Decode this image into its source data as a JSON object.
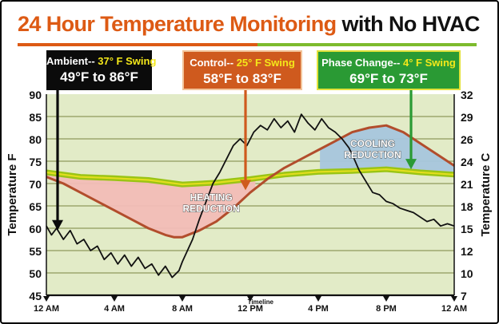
{
  "title": {
    "part1": "24 Hour Temperature Monitoring",
    "part2": "with No HVAC"
  },
  "callouts": {
    "ambient": {
      "label": "Ambient-- ",
      "swing": "37° F Swing",
      "range": "49°F to 86°F"
    },
    "control": {
      "label": "Control-- ",
      "swing": "25° F Swing",
      "range": "58°F to 83°F"
    },
    "phase": {
      "label": "Phase Change-- ",
      "swing": "4° F Swing",
      "range": "69°F to 73°F"
    }
  },
  "annotations": {
    "heating": [
      "HEATING",
      "REDUCTION"
    ],
    "cooling": [
      "COOLING",
      "REDUCTION"
    ]
  },
  "colors": {
    "plot_bg": "#e2ebc7",
    "grid": "#8f9a5c",
    "ambient": "#111111",
    "control": "#b24d2c",
    "phase_fill": "#9ac414",
    "phase_line": "#e2de1e",
    "heating_fill": "#f2bdb7",
    "cooling_fill": "#a7c6dd"
  },
  "chart_data": {
    "type": "line",
    "xlabel": "Timeline",
    "ylabel": "Temperature F",
    "y2label": "Temperature C",
    "x_tick_labels": [
      "12 AM",
      "4 AM",
      "8 AM",
      "12 PM",
      "4 PM",
      "8 PM",
      "12 AM"
    ],
    "x_ticks_hours": [
      0,
      4,
      8,
      12,
      16,
      20,
      24
    ],
    "xlim_hours": [
      0,
      24
    ],
    "ylim": [
      45,
      90
    ],
    "y_ticks": [
      45,
      50,
      55,
      60,
      65,
      70,
      75,
      80,
      85,
      90
    ],
    "y2_ticks": [
      7,
      10,
      12,
      15,
      18,
      21,
      24,
      26,
      29,
      32
    ],
    "grid": true,
    "series": [
      {
        "name": "Ambient",
        "x": [
          0,
          0.3,
          0.6,
          1,
          1.4,
          1.8,
          2.2,
          2.6,
          3,
          3.4,
          3.8,
          4.2,
          4.6,
          5,
          5.4,
          5.8,
          6.2,
          6.6,
          7,
          7.4,
          7.8,
          8,
          8.3,
          8.6,
          9,
          9.4,
          9.8,
          10.2,
          10.6,
          11,
          11.4,
          11.8,
          12.2,
          12.6,
          13,
          13.4,
          13.8,
          14.2,
          14.6,
          15,
          15.4,
          15.8,
          16.2,
          16.6,
          17,
          17.4,
          17.8,
          18,
          18.4,
          18.8,
          19.2,
          19.6,
          20,
          20.4,
          20.8,
          21.2,
          21.6,
          22,
          22.4,
          22.8,
          23.2,
          23.6,
          24
        ],
        "y": [
          60.5,
          58.5,
          60,
          57.5,
          59.5,
          56.5,
          57.5,
          55,
          56,
          53,
          54.5,
          52,
          54,
          51.5,
          53.5,
          51,
          52,
          49.5,
          51.5,
          49,
          50.5,
          52.5,
          55,
          57.5,
          62,
          66,
          70,
          72.5,
          75.5,
          78.5,
          80,
          78.5,
          81.5,
          83,
          82,
          84.5,
          82.5,
          84,
          81.5,
          85.5,
          83.5,
          82,
          84.5,
          82.5,
          81.5,
          80,
          78,
          76.5,
          73,
          70.5,
          68,
          67.5,
          66,
          65.5,
          64.5,
          64,
          63.5,
          62.5,
          61.5,
          62,
          60.5,
          61,
          60.5
        ]
      },
      {
        "name": "Control",
        "x": [
          0,
          1,
          2,
          3,
          4,
          5,
          6,
          7,
          7.5,
          8,
          9,
          10,
          11,
          12,
          13,
          14,
          15,
          16,
          17,
          18,
          19,
          20,
          21,
          22,
          23,
          24
        ],
        "y": [
          71.5,
          70,
          68,
          66,
          64,
          62,
          60,
          58.5,
          58,
          58,
          59.5,
          61.5,
          64.5,
          68,
          71,
          73.5,
          75.5,
          77.5,
          79.5,
          81.5,
          82.5,
          83,
          81.5,
          79,
          76.5,
          74
        ]
      },
      {
        "name": "Phase Change",
        "x": [
          0,
          2,
          4,
          6,
          8,
          10,
          12,
          14,
          16,
          18,
          20,
          22,
          24
        ],
        "y": [
          72.5,
          71.5,
          71.2,
          70.8,
          69.8,
          70.2,
          71,
          72,
          72.6,
          72.8,
          73.2,
          72.5,
          72
        ]
      }
    ],
    "annotations": [
      "HEATING REDUCTION",
      "COOLING REDUCTION"
    ]
  }
}
